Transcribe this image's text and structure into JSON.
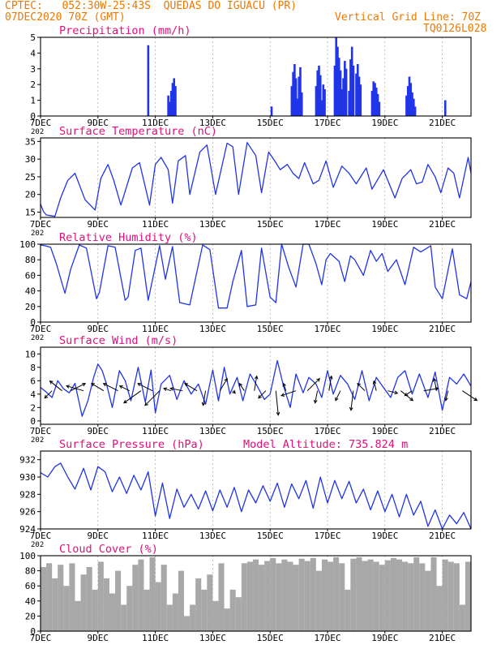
{
  "header": {
    "line1_left": "CPTEC:   052:30W-25:43S  QUEDAS DO IGUACU (PR)",
    "line2_left": "07DEC2020 70Z (GMT)",
    "line2_right": "Vertical Grid Line: 70Z",
    "line3_right": "TQ0126L028",
    "color": "#f07800"
  },
  "colors": {
    "title": "#e0107a",
    "line": "#2034e8",
    "bar": "#2034e8",
    "cloud": "#a8a8a8",
    "frame": "#000000",
    "grid": "#9a9a9a"
  },
  "x_axis": {
    "days": [
      "7DEC",
      "9DEC",
      "11DEC",
      "13DEC",
      "15DEC",
      "17DEC",
      "19DEC",
      "21DEC"
    ],
    "day_values": [
      0,
      2,
      4,
      6,
      8,
      10,
      12,
      14
    ],
    "range": [
      0,
      15
    ],
    "year_stub": "202"
  },
  "chart_data": [
    {
      "id": "precip",
      "type": "bar",
      "title": "Precipitation (mm/h)",
      "ylim": [
        0,
        5
      ],
      "yticks": [
        0,
        1,
        2,
        3,
        4,
        5
      ],
      "x": [
        3.75,
        4.45,
        4.5,
        4.55,
        4.6,
        4.65,
        4.7,
        8.05,
        8.75,
        8.8,
        8.85,
        8.9,
        8.95,
        9.0,
        9.05,
        9.1,
        9.6,
        9.65,
        9.7,
        9.75,
        9.8,
        9.85,
        9.9,
        10.25,
        10.3,
        10.35,
        10.4,
        10.45,
        10.5,
        10.55,
        10.6,
        10.65,
        10.75,
        10.8,
        10.85,
        10.9,
        11.0,
        11.05,
        11.1,
        11.15,
        11.55,
        11.6,
        11.65,
        11.7,
        11.75,
        11.8,
        12.75,
        12.8,
        12.85,
        12.9,
        12.95,
        13.0,
        13.05,
        14.1
      ],
      "values": [
        4.5,
        1.3,
        0.9,
        1.6,
        2.1,
        2.4,
        1.9,
        0.6,
        1.9,
        2.8,
        3.3,
        2.4,
        1.1,
        2.5,
        3.1,
        1.5,
        1.9,
        2.9,
        3.2,
        2.6,
        1.0,
        2.0,
        1.7,
        3.2,
        5.0,
        4.4,
        3.7,
        2.9,
        1.7,
        2.4,
        3.5,
        3.0,
        1.6,
        3.6,
        4.4,
        3.2,
        2.7,
        3.3,
        2.5,
        2.0,
        1.6,
        2.2,
        2.1,
        1.8,
        1.4,
        0.9,
        1.3,
        1.9,
        2.5,
        2.1,
        1.5,
        1.1,
        0.6,
        1.0
      ]
    },
    {
      "id": "temp",
      "type": "line",
      "title": "Surface Temperature (nC)",
      "ylim": [
        13.5,
        36
      ],
      "yticks": [
        15,
        20,
        25,
        30,
        35
      ],
      "x": [
        0,
        0.1,
        0.2,
        0.35,
        0.5,
        0.7,
        0.95,
        1.2,
        1.55,
        1.9,
        2.1,
        2.35,
        2.55,
        2.8,
        3.2,
        3.45,
        3.8,
        4.0,
        4.2,
        4.45,
        4.6,
        4.8,
        5.05,
        5.2,
        5.55,
        5.8,
        6.1,
        6.5,
        6.7,
        6.9,
        7.2,
        7.5,
        7.7,
        7.95,
        8.2,
        8.35,
        8.6,
        8.8,
        9.0,
        9.2,
        9.5,
        9.7,
        9.95,
        10.2,
        10.5,
        10.75,
        11.0,
        11.35,
        11.55,
        11.95,
        12.35,
        12.6,
        12.9,
        13.1,
        13.3,
        13.5,
        13.75,
        13.95,
        14.2,
        14.4,
        14.6,
        14.9,
        15.0
      ],
      "values": [
        17.3,
        15.2,
        14.2,
        14.0,
        13.8,
        19.0,
        24.0,
        26.0,
        18.5,
        15.6,
        24.5,
        28.5,
        24.0,
        17.0,
        27.5,
        29.0,
        17.0,
        28.5,
        30.5,
        27.0,
        17.5,
        29.5,
        31.0,
        20.0,
        32.0,
        34.0,
        20.0,
        34.5,
        33.5,
        20.0,
        34.7,
        31.0,
        20.5,
        32.0,
        29.0,
        27.0,
        28.5,
        26.0,
        24.5,
        29.0,
        23.0,
        24.0,
        29.5,
        22.0,
        28.0,
        26.0,
        23.0,
        27.5,
        21.5,
        27.0,
        19.0,
        24.5,
        27.0,
        23.0,
        23.5,
        28.5,
        25.0,
        20.5,
        27.5,
        26.0,
        19.0,
        30.5,
        26.0
      ]
    },
    {
      "id": "rh",
      "type": "line",
      "title": "Relative Humidity (%)",
      "ylim": [
        0,
        100
      ],
      "yticks": [
        0,
        20,
        40,
        60,
        80,
        100
      ],
      "x": [
        0,
        0.15,
        0.35,
        0.55,
        0.85,
        1.05,
        1.35,
        1.6,
        1.95,
        2.05,
        2.35,
        2.6,
        2.95,
        3.05,
        3.3,
        3.5,
        3.75,
        4.15,
        4.35,
        4.6,
        4.85,
        5.2,
        5.65,
        5.9,
        6.2,
        6.5,
        6.7,
        7.0,
        7.2,
        7.5,
        7.7,
        8.0,
        8.2,
        8.4,
        8.65,
        8.9,
        9.15,
        9.35,
        9.6,
        9.8,
        9.95,
        10.1,
        10.4,
        10.6,
        10.8,
        10.95,
        11.25,
        11.5,
        11.7,
        11.9,
        12.1,
        12.4,
        12.7,
        13.0,
        13.25,
        13.6,
        13.75,
        14.0,
        14.35,
        14.6,
        14.85,
        15.0
      ],
      "values": [
        99,
        98,
        96,
        75,
        37,
        68,
        99,
        95,
        30,
        38,
        98,
        96,
        28,
        32,
        92,
        95,
        28,
        98,
        55,
        97,
        25,
        22,
        99,
        93,
        18,
        18,
        52,
        92,
        20,
        22,
        95,
        32,
        25,
        100,
        70,
        45,
        100,
        100,
        75,
        48,
        80,
        88,
        78,
        52,
        85,
        80,
        60,
        92,
        78,
        88,
        65,
        80,
        48,
        96,
        90,
        98,
        45,
        30,
        94,
        35,
        30,
        52
      ]
    },
    {
      "id": "wind",
      "type": "line",
      "title": "Surface Wind (m/s)",
      "ylim": [
        -0.5,
        11
      ],
      "yticks": [
        0,
        2,
        4,
        6,
        8,
        10
      ],
      "x": [
        0,
        0.2,
        0.4,
        0.6,
        0.8,
        1.0,
        1.2,
        1.45,
        1.65,
        1.85,
        2.0,
        2.15,
        2.3,
        2.5,
        2.75,
        2.95,
        3.15,
        3.4,
        3.65,
        3.85,
        4.0,
        4.2,
        4.5,
        4.75,
        5.0,
        5.25,
        5.5,
        5.75,
        6.0,
        6.2,
        6.4,
        6.6,
        6.85,
        7.05,
        7.3,
        7.55,
        7.8,
        8.0,
        8.25,
        8.45,
        8.7,
        8.9,
        9.15,
        9.35,
        9.6,
        9.8,
        10.0,
        10.2,
        10.45,
        10.7,
        10.95,
        11.2,
        11.45,
        11.7,
        11.95,
        12.2,
        12.45,
        12.7,
        12.95,
        13.2,
        13.5,
        13.75,
        14.0,
        14.25,
        14.5,
        14.75,
        15.0
      ],
      "values": [
        5.0,
        4.3,
        3.5,
        6.0,
        4.8,
        4.2,
        5.6,
        0.7,
        3.0,
        6.5,
        8.5,
        7.5,
        5.5,
        2.0,
        7.5,
        6.0,
        3.0,
        8.0,
        2.8,
        7.6,
        1.2,
        5.5,
        6.8,
        3.2,
        6.0,
        4.0,
        5.5,
        2.5,
        7.6,
        3.0,
        8.0,
        4.0,
        6.5,
        3.0,
        7.0,
        5.2,
        3.2,
        4.0,
        9.0,
        5.5,
        2.0,
        7.0,
        4.2,
        6.5,
        5.5,
        3.5,
        7.5,
        4.0,
        6.8,
        5.5,
        3.2,
        7.5,
        3.0,
        6.5,
        5.0,
        3.5,
        6.5,
        7.5,
        4.0,
        7.0,
        3.5,
        7.3,
        1.6,
        6.5,
        5.5,
        7.0,
        5.2
      ]
    },
    {
      "id": "press",
      "type": "line",
      "title": "Surface Pressure (hPa)",
      "subtitle": "Model Altitude: 735.824 m",
      "ylim": [
        924,
        933
      ],
      "yticks": [
        924,
        926,
        928,
        930,
        932
      ],
      "x": [
        0,
        0.25,
        0.5,
        0.7,
        0.95,
        1.2,
        1.5,
        1.75,
        2.0,
        2.25,
        2.5,
        2.75,
        3.0,
        3.25,
        3.5,
        3.75,
        4.0,
        4.25,
        4.5,
        4.75,
        5.0,
        5.25,
        5.5,
        5.75,
        6.0,
        6.25,
        6.5,
        6.75,
        7.0,
        7.25,
        7.5,
        7.75,
        8.0,
        8.25,
        8.5,
        8.75,
        9.0,
        9.25,
        9.5,
        9.75,
        10.0,
        10.25,
        10.5,
        10.75,
        11.0,
        11.25,
        11.5,
        11.75,
        12.0,
        12.25,
        12.5,
        12.75,
        13.0,
        13.25,
        13.5,
        13.75,
        14.0,
        14.25,
        14.5,
        14.75,
        15.0
      ],
      "values": [
        930.5,
        930.0,
        931.2,
        931.6,
        930.0,
        928.6,
        931.0,
        928.5,
        931.2,
        930.6,
        928.3,
        930.0,
        928.1,
        930.2,
        928.5,
        930.6,
        925.5,
        929.3,
        925.2,
        928.6,
        926.5,
        928.0,
        926.3,
        928.4,
        926.1,
        928.5,
        926.5,
        928.8,
        926.0,
        928.5,
        927.0,
        929.0,
        927.2,
        929.3,
        926.5,
        929.2,
        927.5,
        929.6,
        926.4,
        930.0,
        927.0,
        929.6,
        927.5,
        929.5,
        927.0,
        928.6,
        926.2,
        928.4,
        926.0,
        928.0,
        925.4,
        928.0,
        925.6,
        927.2,
        924.3,
        926.2,
        924.0,
        925.6,
        924.6,
        925.9,
        924.0
      ]
    },
    {
      "id": "cloud",
      "type": "area",
      "title": "Cloud Cover (%)",
      "ylim": [
        0,
        100
      ],
      "yticks": [
        0,
        20,
        40,
        60,
        80,
        100
      ],
      "x": [
        0,
        0.2,
        0.4,
        0.6,
        0.8,
        1.0,
        1.2,
        1.4,
        1.6,
        1.8,
        2.0,
        2.2,
        2.4,
        2.6,
        2.8,
        3.0,
        3.2,
        3.4,
        3.6,
        3.8,
        4.0,
        4.2,
        4.4,
        4.6,
        4.8,
        5.0,
        5.2,
        5.4,
        5.6,
        5.8,
        6.0,
        6.2,
        6.4,
        6.6,
        6.8,
        7.0,
        7.2,
        7.4,
        7.6,
        7.8,
        8.0,
        8.2,
        8.4,
        8.6,
        8.8,
        9.0,
        9.2,
        9.4,
        9.6,
        9.8,
        10.0,
        10.2,
        10.4,
        10.6,
        10.8,
        11.0,
        11.2,
        11.4,
        11.6,
        11.8,
        12.0,
        12.2,
        12.4,
        12.6,
        12.8,
        13.0,
        13.2,
        13.4,
        13.6,
        13.8,
        14.0,
        14.2,
        14.4,
        14.6,
        14.8,
        15.0
      ],
      "values": [
        85,
        90,
        70,
        88,
        60,
        90,
        40,
        75,
        85,
        55,
        92,
        70,
        50,
        80,
        35,
        60,
        88,
        95,
        55,
        98,
        65,
        88,
        35,
        50,
        80,
        20,
        35,
        70,
        55,
        75,
        40,
        90,
        30,
        55,
        45,
        90,
        92,
        95,
        88,
        93,
        97,
        90,
        95,
        92,
        88,
        96,
        93,
        97,
        80,
        95,
        92,
        98,
        90,
        55,
        96,
        98,
        93,
        95,
        92,
        88,
        94,
        97,
        95,
        92,
        90,
        98,
        90,
        80,
        98,
        60,
        95,
        92,
        90,
        35,
        92,
        80
      ]
    }
  ],
  "wind_vectors": {
    "x": [
      0.4,
      0.75,
      1.05,
      1.5,
      2.2,
      2.7,
      3.1,
      3.5,
      3.9,
      4.15,
      4.55,
      4.95,
      5.45,
      5.75,
      6.25,
      6.7,
      7.1,
      7.45,
      7.85,
      8.2,
      8.55,
      8.9,
      9.3,
      9.65,
      10.05,
      10.45,
      10.9,
      11.3,
      11.7,
      12.1,
      12.55,
      12.95,
      13.35,
      13.8,
      14.2,
      14.7
    ],
    "u": [
      -1.5,
      -2.5,
      3.0,
      -3.5,
      -2.5,
      -3.0,
      -2.0,
      -3.5,
      -3.0,
      -3.0,
      -1.5,
      -2.5,
      -2.5,
      -0.5,
      1.5,
      0.5,
      -1.0,
      0.5,
      -1.5,
      0.5,
      -0.5,
      -3.0,
      2.5,
      -0.5,
      0.5,
      -1.0,
      -0.5,
      -1.5,
      -0.5,
      2.0,
      2.5,
      -1.5,
      3.0,
      -0.5,
      -0.5,
      3.0
    ],
    "v": [
      -1.5,
      2.0,
      1.5,
      1.0,
      1.5,
      1.5,
      1.0,
      -2.5,
      1.5,
      -3.0,
      0.5,
      0.5,
      1.5,
      -3.0,
      2.5,
      -0.5,
      1.5,
      3.0,
      -1.5,
      -5.0,
      1.5,
      -1.0,
      2.5,
      -2.5,
      3.0,
      -2.0,
      -4.0,
      1.5,
      2.0,
      -0.5,
      -2.0,
      -1.0,
      0.5,
      2.5,
      -2.0,
      -2.0
    ]
  }
}
